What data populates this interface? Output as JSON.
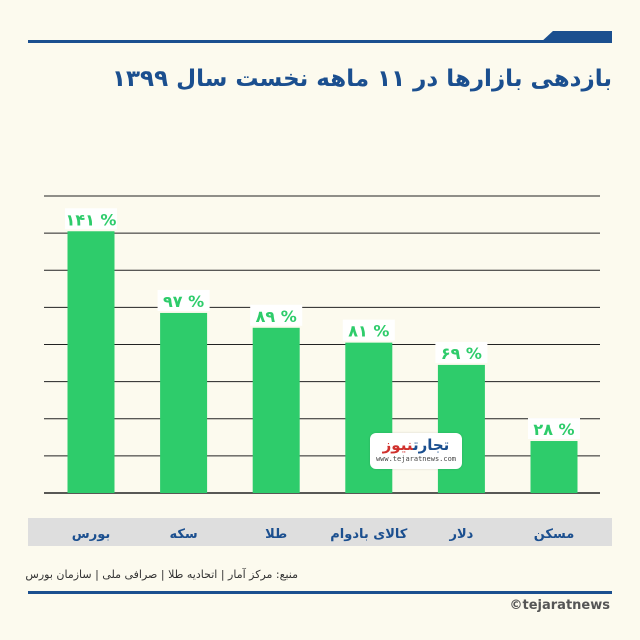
{
  "title": "بازدهی بازارها در ۱۱ ماهه نخست سال ۱۳۹۹",
  "source": "منبع: مرکز آمار | اتحادیه طلا | صرافی ملی | سازمان بورس",
  "handle": "©tejaratnews",
  "logo": {
    "part1": "تجارت",
    "part2": "نیوز",
    "url": "www.tejaratnews.com"
  },
  "colors": {
    "bar": "#2ecc6b",
    "accent": "#1b4f8f",
    "label": "#2ecc6b",
    "category": "#1b4f8f",
    "grid": "#222222"
  },
  "chart_data": {
    "type": "bar",
    "title": "بازدهی بازارها در ۱۱ ماهه نخست سال ۱۳۹۹",
    "categories": [
      "بورس",
      "سکه",
      "طلا",
      "کالای بادوام",
      "دلار",
      "مسکن"
    ],
    "values": [
      141,
      97,
      89,
      81,
      69,
      28
    ],
    "value_labels": [
      "۱۴۱ %",
      "۹۷ %",
      "۸۹ %",
      "۸۱ %",
      "۶۹ %",
      "۲۸ %"
    ],
    "unit": "%",
    "ylim": [
      0,
      160
    ],
    "grid": true
  }
}
